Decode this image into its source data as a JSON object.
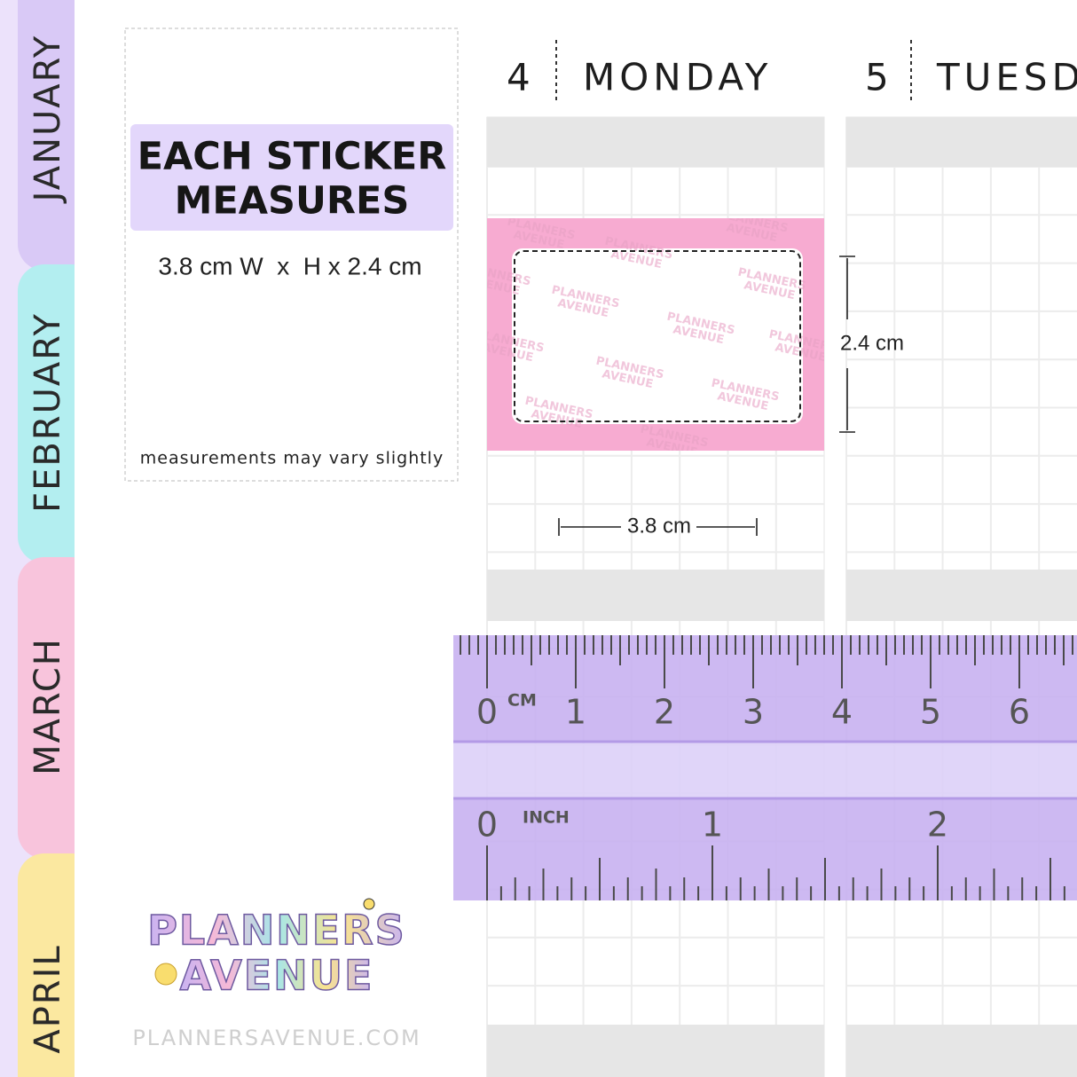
{
  "tabs": [
    "JANUARY",
    "FEBRUARY",
    "MARCH",
    "APRIL"
  ],
  "days": [
    {
      "number": "4",
      "name": "MONDAY"
    },
    {
      "number": "5",
      "name": "TUESDAY"
    }
  ],
  "info": {
    "title": [
      "EACH STICKER",
      "MEASURES"
    ],
    "size": "3.8 cm W  x  H x 2.4 cm",
    "note": "measurements may vary slightly"
  },
  "sticker": {
    "height_label": "2.4 cm",
    "width_label": "3.8 cm",
    "watermark": [
      "PLANNERS",
      "AVENUE"
    ]
  },
  "ruler": {
    "cm_unit": "CM",
    "cm_labels": [
      "0",
      "1",
      "2",
      "3",
      "4",
      "5",
      "6"
    ],
    "inch_unit": "INCH",
    "inch_labels": [
      "0",
      "1",
      "2"
    ]
  },
  "logo": {
    "lines": [
      "PLANNERS",
      "AVENUE"
    ],
    "url": "PLANNERSAVENUE.COM"
  }
}
